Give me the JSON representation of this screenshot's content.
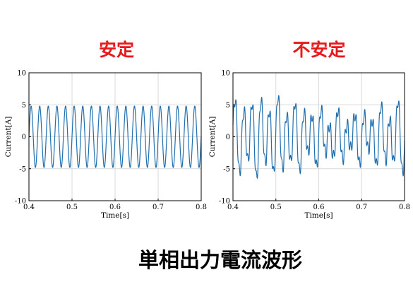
{
  "charts": [
    {
      "chart_data": {
        "type": "line",
        "title": "安定",
        "xlabel": "Time[s]",
        "ylabel": "Current[A]",
        "xlim": [
          0.4,
          0.8
        ],
        "ylim": [
          -10,
          10
        ],
        "xticks": [
          "0.4",
          "0.5",
          "0.6",
          "0.7",
          "0.8"
        ],
        "yticks": [
          "-10",
          "-5",
          "0",
          "5",
          "10"
        ],
        "grid": true,
        "series_color": "#1f6fb0",
        "waveform": {
          "kind": "sine",
          "amplitude_A": 4.8,
          "frequency_hz": 50,
          "t_start": 0.4,
          "t_end": 0.8
        }
      }
    },
    {
      "chart_data": {
        "type": "line",
        "title": "不安定",
        "xlabel": "Time[s]",
        "ylabel": "Current[A]",
        "xlim": [
          0.4,
          0.8
        ],
        "ylim": [
          -10,
          10
        ],
        "xticks": [
          "0.4",
          "0.5",
          "0.6",
          "0.7",
          "0.8"
        ],
        "yticks": [
          "-10",
          "-5",
          "0",
          "5",
          "10"
        ],
        "grid": true,
        "series_color": "#1f6fb0",
        "waveform": {
          "kind": "unstable",
          "peak_A": 7.8,
          "frequency_hz": 50,
          "t_start": 0.4,
          "t_end": 0.8
        }
      }
    }
  ],
  "caption": "単相出力電流波形",
  "colors": {
    "title": "#e8191b",
    "caption": "#000000",
    "axis": "#000000",
    "grid": "#d9d9d9"
  }
}
